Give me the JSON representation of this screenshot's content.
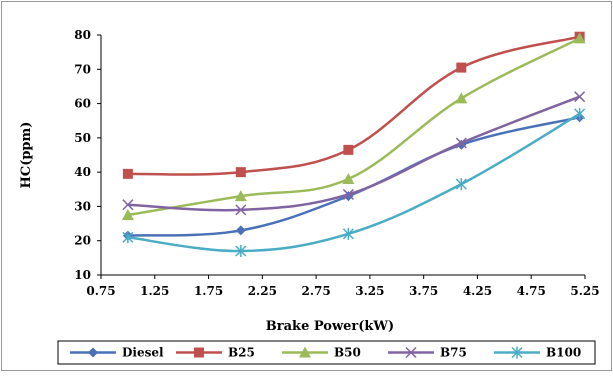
{
  "chart_data": {
    "type": "line",
    "xlabel": "Brake Power(kW)",
    "ylabel": "HC(ppm)",
    "xlim": [
      0.75,
      5.25
    ],
    "ylim": [
      10,
      80
    ],
    "xticks": [
      "0.75",
      "1.25",
      "1.75",
      "2.25",
      "2.75",
      "3.25",
      "3.75",
      "4.25",
      "4.75",
      "5.25"
    ],
    "yticks": [
      "10",
      "20",
      "30",
      "40",
      "50",
      "60",
      "70",
      "80"
    ],
    "grid": false,
    "legend_position": "bottom",
    "x": [
      1.0,
      2.05,
      3.05,
      4.1,
      5.2
    ],
    "series": [
      {
        "name": "Diesel",
        "values": [
          21.5,
          23,
          33,
          48,
          56
        ],
        "color": "#4a71b8",
        "marker": "diamond"
      },
      {
        "name": "B25",
        "values": [
          39.5,
          40,
          46.5,
          70.5,
          79.5
        ],
        "color": "#c0504d",
        "marker": "square"
      },
      {
        "name": "B50",
        "values": [
          27.5,
          33,
          38,
          61.5,
          79
        ],
        "color": "#9bbb59",
        "marker": "triangle"
      },
      {
        "name": "B75",
        "values": [
          30.5,
          29,
          33.5,
          48.5,
          62
        ],
        "color": "#8064a2",
        "marker": "x"
      },
      {
        "name": "B100",
        "values": [
          21,
          17,
          22,
          36.5,
          57
        ],
        "color": "#4bacc6",
        "marker": "star"
      }
    ]
  }
}
